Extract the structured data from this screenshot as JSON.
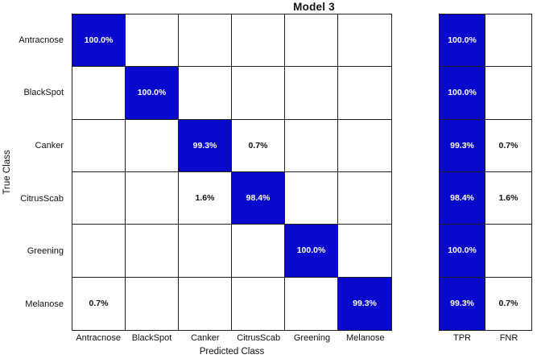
{
  "chart_data": {
    "type": "heatmap",
    "subtype": "confusion-matrix",
    "title": "Model 3",
    "xlabel": "Predicted Class",
    "ylabel": "True Class",
    "classes": [
      "Antracnose",
      "BlackSpot",
      "Canker",
      "CitrusScab",
      "Greening",
      "Melanose"
    ],
    "matrix": [
      [
        "100.0%",
        "",
        "",
        "",
        "",
        ""
      ],
      [
        "",
        "100.0%",
        "",
        "",
        "",
        ""
      ],
      [
        "",
        "",
        "99.3%",
        "0.7%",
        "",
        ""
      ],
      [
        "",
        "",
        "1.6%",
        "98.4%",
        "",
        ""
      ],
      [
        "",
        "",
        "",
        "",
        "100.0%",
        ""
      ],
      [
        "0.7%",
        "",
        "",
        "",
        "",
        "99.3%"
      ]
    ],
    "summary": {
      "columns": [
        "TPR",
        "FNR"
      ],
      "TPR": [
        "100.0%",
        "100.0%",
        "99.3%",
        "98.4%",
        "100.0%",
        "99.3%"
      ],
      "FNR": [
        "",
        "",
        "0.7%",
        "1.6%",
        "",
        "0.7%"
      ]
    },
    "layout": {
      "grid": "on",
      "legend": "none",
      "diagonal_highlighted": true
    },
    "colors": {
      "diagonal_fill": "#0909ce",
      "diagonal_text": "#fbfbef",
      "off_diagonal_fill": "#ffffff",
      "text": "#111111",
      "grid_line": "#1f1f1f",
      "background": "#ffffff"
    }
  }
}
